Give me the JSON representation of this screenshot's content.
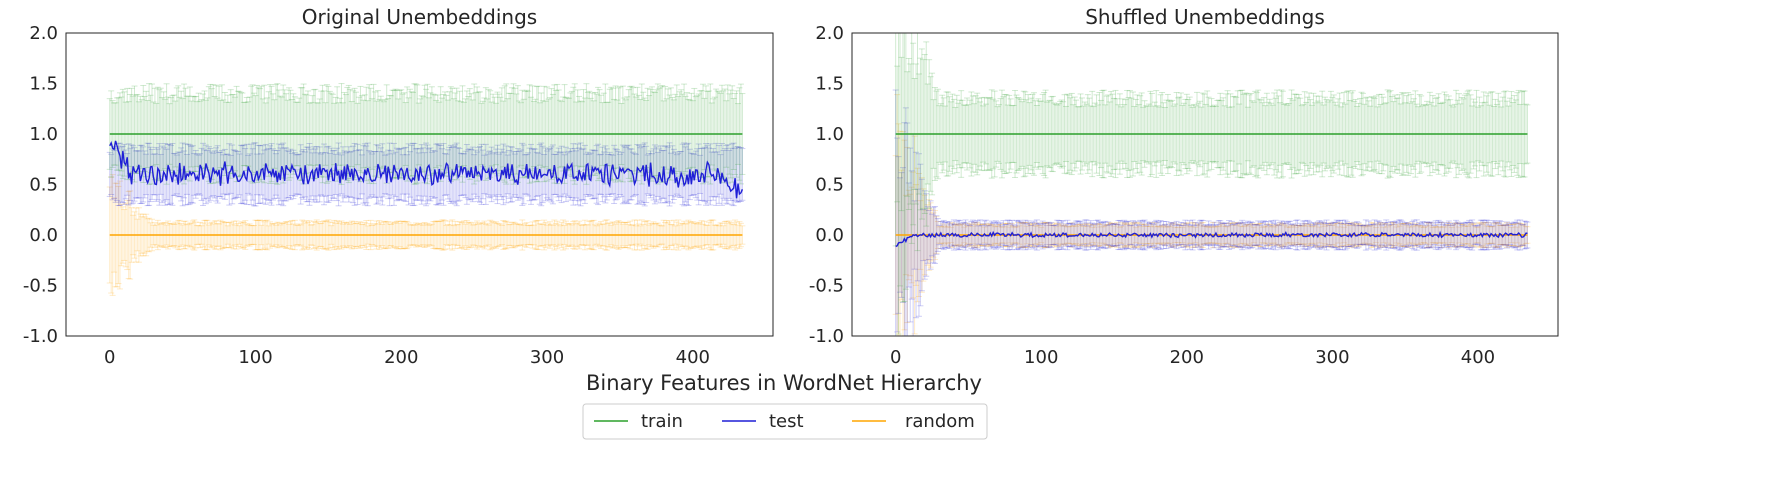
{
  "chart_data": [
    {
      "type": "line",
      "title": "Original Unembeddings",
      "ylim": [
        -1.0,
        2.0
      ],
      "xlim": [
        -30,
        455
      ],
      "x_range": [
        0,
        434
      ],
      "xticks": [
        0,
        100,
        200,
        300,
        400
      ],
      "yticks": [
        "-1.0",
        "-0.5",
        "0.0",
        "0.5",
        "1.0",
        "1.5",
        "2.0"
      ],
      "series": [
        {
          "name": "train",
          "mean": 1.0,
          "err": 0.4,
          "color": "#2ca02c"
        },
        {
          "name": "test",
          "mean": 0.6,
          "mean_start": 0.92,
          "mean_end": 0.4,
          "noise": 0.1,
          "err": 0.25,
          "color": "#1f1fd6"
        },
        {
          "name": "random",
          "mean": 0.0,
          "err": 0.12,
          "err_start": 0.5,
          "color": "#ffa500"
        }
      ]
    },
    {
      "type": "line",
      "title": "Shuffled Unembeddings",
      "ylim": [
        -1.0,
        2.0
      ],
      "xlim": [
        -30,
        455
      ],
      "x_range": [
        0,
        434
      ],
      "xticks": [
        0,
        100,
        200,
        300,
        400
      ],
      "yticks": [
        "-1.0",
        "-0.5",
        "0.0",
        "0.5",
        "1.0",
        "1.5",
        "2.0"
      ],
      "series": [
        {
          "name": "train",
          "mean": 1.0,
          "err": 0.35,
          "err_start": 1.5,
          "color": "#2ca02c"
        },
        {
          "name": "test",
          "mean": 0.0,
          "mean_start": -0.1,
          "noise": 0.02,
          "err": 0.12,
          "err_start": 1.2,
          "color": "#1f1fd6"
        },
        {
          "name": "random",
          "mean": 0.0,
          "err": 0.1,
          "err_start": 1.2,
          "color": "#ffa500"
        }
      ]
    }
  ],
  "shared_xlabel": "Binary Features in WordNet Hierarchy",
  "legend": [
    {
      "label": "train",
      "color": "#2ca02c"
    },
    {
      "label": "test",
      "color": "#1f1fd6"
    },
    {
      "label": "random",
      "color": "#ffa500"
    }
  ]
}
